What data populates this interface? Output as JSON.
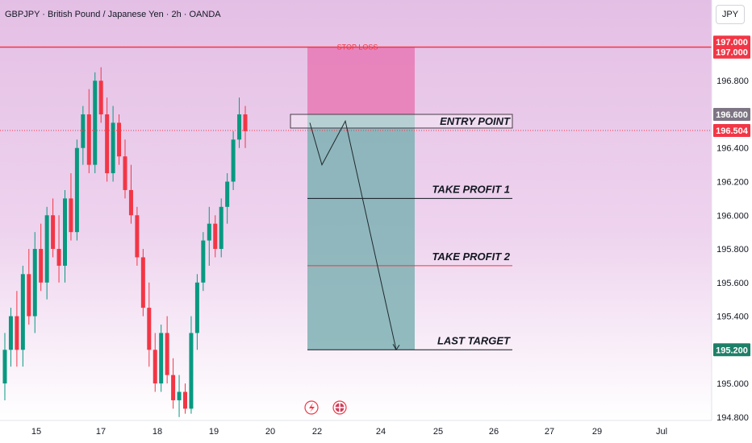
{
  "header": {
    "symbol_line": "GBPJPY · British Pound / Japanese Yen · 2h · OANDA",
    "currency_button": "JPY"
  },
  "chart_data": {
    "type": "candlestick",
    "x_ticks": [
      "15",
      "17",
      "18",
      "19",
      "20",
      "22",
      "24",
      "25",
      "26",
      "27",
      "29",
      "Jul"
    ],
    "y_ticks": [
      "197.000",
      "196.800",
      "196.600",
      "196.400",
      "196.200",
      "196.000",
      "195.800",
      "195.600",
      "195.400",
      "195.200",
      "195.000",
      "194.800"
    ],
    "ylim": [
      194.78,
      197.28
    ],
    "price_tags": [
      {
        "label": "197.000",
        "value": 197.03,
        "color": "#f23645"
      },
      {
        "label": "197.000",
        "value": 196.97,
        "color": "#f23645"
      },
      {
        "label": "196.600",
        "value": 196.6,
        "color": "#7d7583"
      },
      {
        "label": "196.504",
        "value": 196.504,
        "color": "#f23645"
      },
      {
        "label": "195.200",
        "value": 195.2,
        "color": "#1e7f68"
      }
    ],
    "candles": [
      [
        195.0,
        195.3,
        194.9,
        195.2
      ],
      [
        195.2,
        195.45,
        195.1,
        195.4
      ],
      [
        195.4,
        195.55,
        195.1,
        195.2
      ],
      [
        195.2,
        195.7,
        195.1,
        195.65
      ],
      [
        195.65,
        195.8,
        195.35,
        195.4
      ],
      [
        195.4,
        195.9,
        195.3,
        195.8
      ],
      [
        195.8,
        195.95,
        195.55,
        195.6
      ],
      [
        195.6,
        196.05,
        195.5,
        196.0
      ],
      [
        196.0,
        196.1,
        195.75,
        195.8
      ],
      [
        195.8,
        196.0,
        195.6,
        195.7
      ],
      [
        195.7,
        196.15,
        195.6,
        196.1
      ],
      [
        196.1,
        196.25,
        195.85,
        195.9
      ],
      [
        195.9,
        196.45,
        195.85,
        196.4
      ],
      [
        196.4,
        196.65,
        196.3,
        196.6
      ],
      [
        196.6,
        196.75,
        196.25,
        196.3
      ],
      [
        196.3,
        196.85,
        196.25,
        196.8
      ],
      [
        196.8,
        196.88,
        196.55,
        196.6
      ],
      [
        196.6,
        196.7,
        196.2,
        196.25
      ],
      [
        196.25,
        196.65,
        196.2,
        196.55
      ],
      [
        196.55,
        196.6,
        196.3,
        196.35
      ],
      [
        196.35,
        196.45,
        196.1,
        196.15
      ],
      [
        196.15,
        196.3,
        195.95,
        196.0
      ],
      [
        196.0,
        196.05,
        195.7,
        195.75
      ],
      [
        195.75,
        195.8,
        195.4,
        195.45
      ],
      [
        195.45,
        195.6,
        195.1,
        195.2
      ],
      [
        195.2,
        195.3,
        194.95,
        195.0
      ],
      [
        195.0,
        195.35,
        194.95,
        195.3
      ],
      [
        195.3,
        195.4,
        195.0,
        195.05
      ],
      [
        195.05,
        195.15,
        194.85,
        194.9
      ],
      [
        194.9,
        195.05,
        194.8,
        194.95
      ],
      [
        194.95,
        195.0,
        194.82,
        194.85
      ],
      [
        194.85,
        195.4,
        194.82,
        195.3
      ],
      [
        195.3,
        195.65,
        195.2,
        195.6
      ],
      [
        195.6,
        195.9,
        195.55,
        195.85
      ],
      [
        195.85,
        196.05,
        195.7,
        195.95
      ],
      [
        195.95,
        196.0,
        195.75,
        195.8
      ],
      [
        195.8,
        196.1,
        195.75,
        196.05
      ],
      [
        196.05,
        196.25,
        195.95,
        196.2
      ],
      [
        196.2,
        196.5,
        196.15,
        196.45
      ],
      [
        196.45,
        196.7,
        196.4,
        196.6
      ],
      [
        196.6,
        196.65,
        196.4,
        196.5
      ]
    ],
    "stop_loss": {
      "label": "STOP LOSS",
      "value": 197.0
    },
    "entry": {
      "label": "ENTRY POINT",
      "value": 196.6
    },
    "take_profit_1": {
      "label": "TAKE PROFIT 1",
      "value": 196.1
    },
    "take_profit_2": {
      "label": "TAKE PROFIT 2",
      "value": 195.7
    },
    "last_target": {
      "label": "LAST TARGET",
      "value": 195.2
    },
    "current_price": 196.504,
    "projected_path": [
      196.55,
      196.3,
      196.56,
      195.2
    ],
    "colors": {
      "up": "#089981",
      "down": "#f23645",
      "background_top": "#e4bfe5",
      "background_bottom": "#ffffff",
      "stop_zone": "#e879b5",
      "profit_zone": "#7fb2b4",
      "stop_line": "#f23645"
    }
  }
}
